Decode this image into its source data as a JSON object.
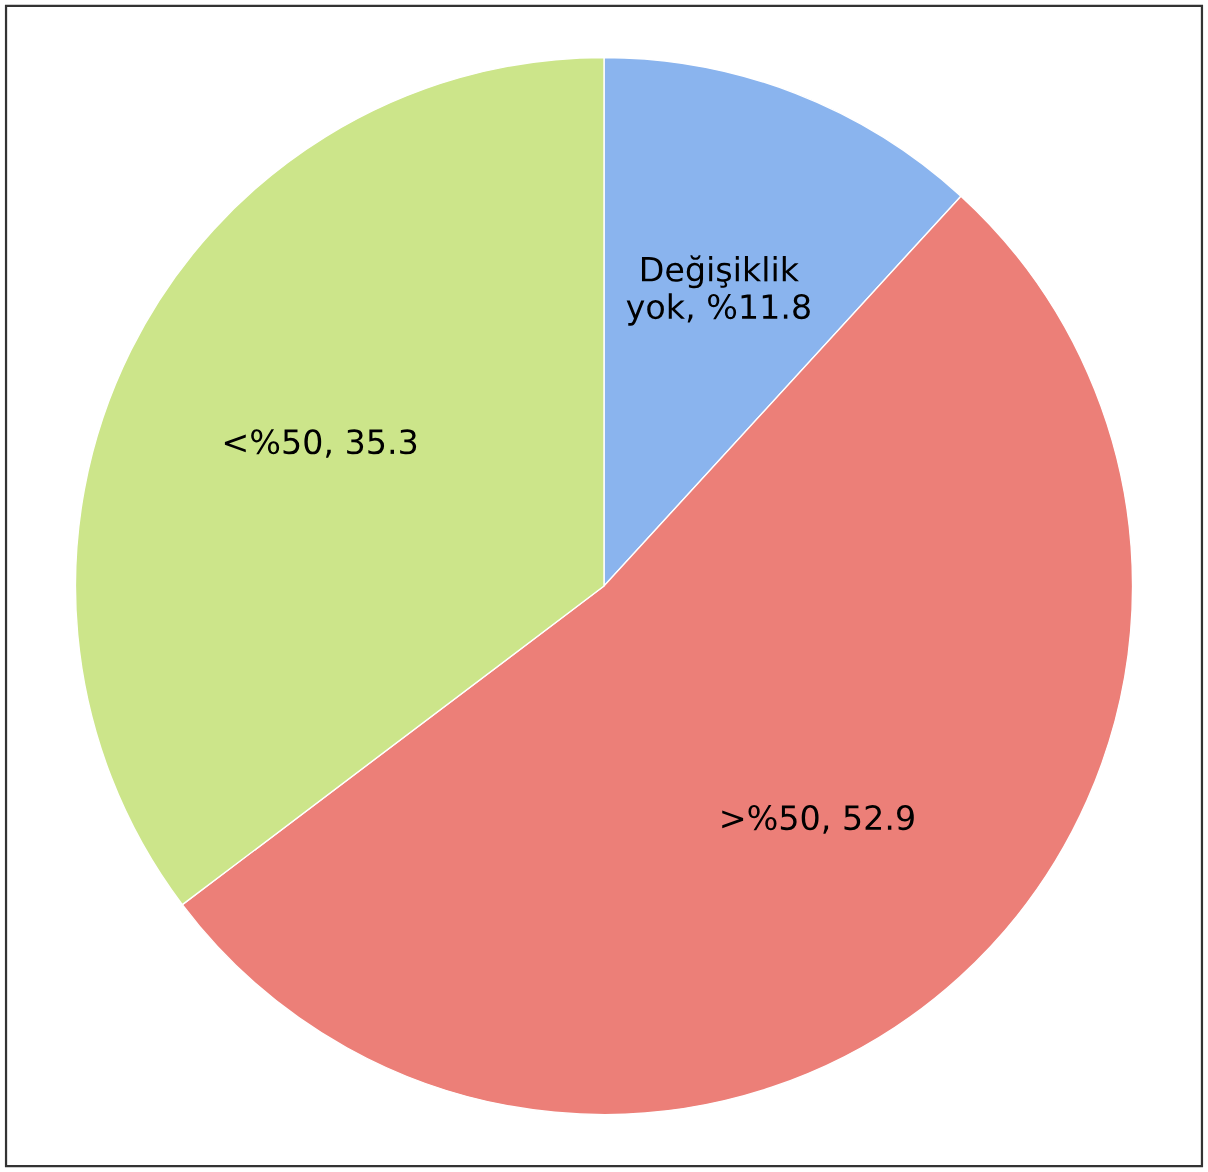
{
  "chart_data": {
    "type": "pie",
    "categories": [
      "Değişiklik yok",
      ">%50",
      "<%50"
    ],
    "values": [
      11.8,
      52.9,
      35.3
    ],
    "colors": [
      "#8ab4ee",
      "#ec7f78",
      "#cce58a"
    ],
    "value_labels": [
      "%11.8",
      "52.9",
      "35.3"
    ]
  }
}
